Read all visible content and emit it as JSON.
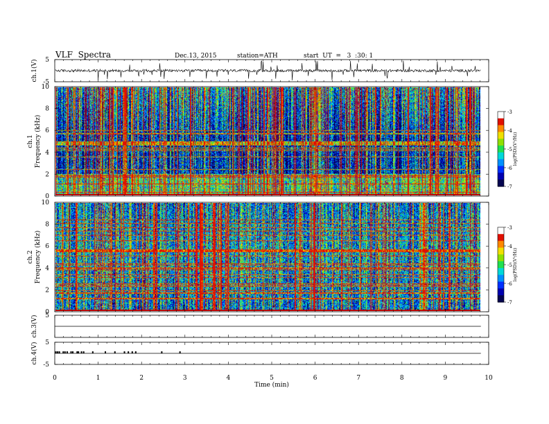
{
  "header": {
    "title": "VLF  Spectra",
    "date": "Dec.13, 2015",
    "station": "station=ATH",
    "start": "start  UT  =   3  :30: 1"
  },
  "chart_data": [
    {
      "type": "line",
      "name": "ch1-waveform",
      "ylabel": "ch.1(V)",
      "ylim": [
        -5,
        5
      ],
      "yticks": [
        "5",
        "-5"
      ],
      "description_values": {
        "baseline": 0,
        "typical_amplitude": 0.6,
        "spike_peaks": [
          -4.5,
          4.5
        ]
      }
    },
    {
      "type": "heatmap",
      "name": "ch1-spectrogram",
      "channel_label": "ch.1",
      "ylabel": "Frequency  (kHz)",
      "ylim": [
        0,
        10
      ],
      "yticks": [
        "0",
        "2",
        "4",
        "6",
        "8",
        "10"
      ],
      "colorbar": {
        "label": "log(PSD)(V²/Hz)",
        "range": [
          -7,
          -3
        ],
        "ticks": [
          "-3",
          "-4",
          "-5",
          "-6",
          "-7"
        ]
      }
    },
    {
      "type": "heatmap",
      "name": "ch2-spectrogram",
      "channel_label": "ch.2",
      "ylabel": "Frequency  (kHz)",
      "ylim": [
        0,
        10
      ],
      "yticks": [
        "0",
        "2",
        "4",
        "6",
        "8",
        "10"
      ],
      "colorbar": {
        "label": "log(PSD)(V²/Hz)",
        "range": [
          -7,
          -3
        ],
        "ticks": [
          "-3",
          "-4",
          "-5",
          "-6",
          "-7"
        ]
      }
    },
    {
      "type": "line",
      "name": "ch3-trace",
      "ylabel": "ch.3(V)",
      "ylim": [
        -5,
        5
      ],
      "yticks": [
        "5"
      ],
      "level": 0
    },
    {
      "type": "line",
      "name": "ch4-trace",
      "ylabel": "ch.4(V)",
      "ylim": [
        -5,
        5
      ],
      "yticks": [
        "5",
        "-5"
      ],
      "level": 0,
      "pulses": [
        0.01,
        0.05,
        0.09,
        0.18,
        0.22,
        0.27,
        0.36,
        0.4,
        0.5,
        0.53,
        0.6,
        0.65,
        0.86,
        1.15,
        1.37,
        1.59,
        1.68,
        1.77,
        1.85,
        2.45,
        2.87
      ],
      "pulse_height": 0.9
    }
  ],
  "x_axis": {
    "label": "Time  (min)",
    "range": [
      0,
      10
    ],
    "tick_labels": [
      "0",
      "1",
      "2",
      "3",
      "4",
      "5",
      "6",
      "7",
      "8",
      "9",
      "10"
    ],
    "data_end": 9.82
  },
  "colors": {
    "scale": [
      "#050550",
      "#0000b0",
      "#0030ff",
      "#0090ff",
      "#00d8d8",
      "#20e050",
      "#90e000",
      "#f0e000",
      "#ff8800",
      "#e01000",
      "#ffffff"
    ]
  }
}
